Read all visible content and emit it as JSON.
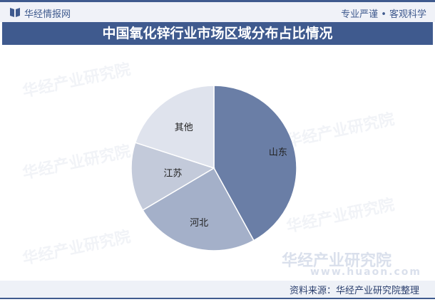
{
  "header": {
    "brand": "华经情报网",
    "slogan": "专业严谨 • 客观科学"
  },
  "title": "中国氧化锌行业市场区域分布占比情况",
  "watermark": {
    "name": "华经产业研究院",
    "url": "www.huaon.com"
  },
  "footer": {
    "source": "资料来源：华经产业研究院整理"
  },
  "chart_data": {
    "type": "pie",
    "title": "中国氧化锌行业市场区域分布占比情况",
    "categories": [
      "山东",
      "河北",
      "江苏",
      "其他"
    ],
    "values": [
      42,
      24.5,
      13.5,
      20
    ],
    "colors": [
      "#6a7ea6",
      "#a4b0c9",
      "#c3cada",
      "#dfe3ed"
    ],
    "start_angle": "top, clockwise",
    "legend": "none; labels on slices"
  }
}
